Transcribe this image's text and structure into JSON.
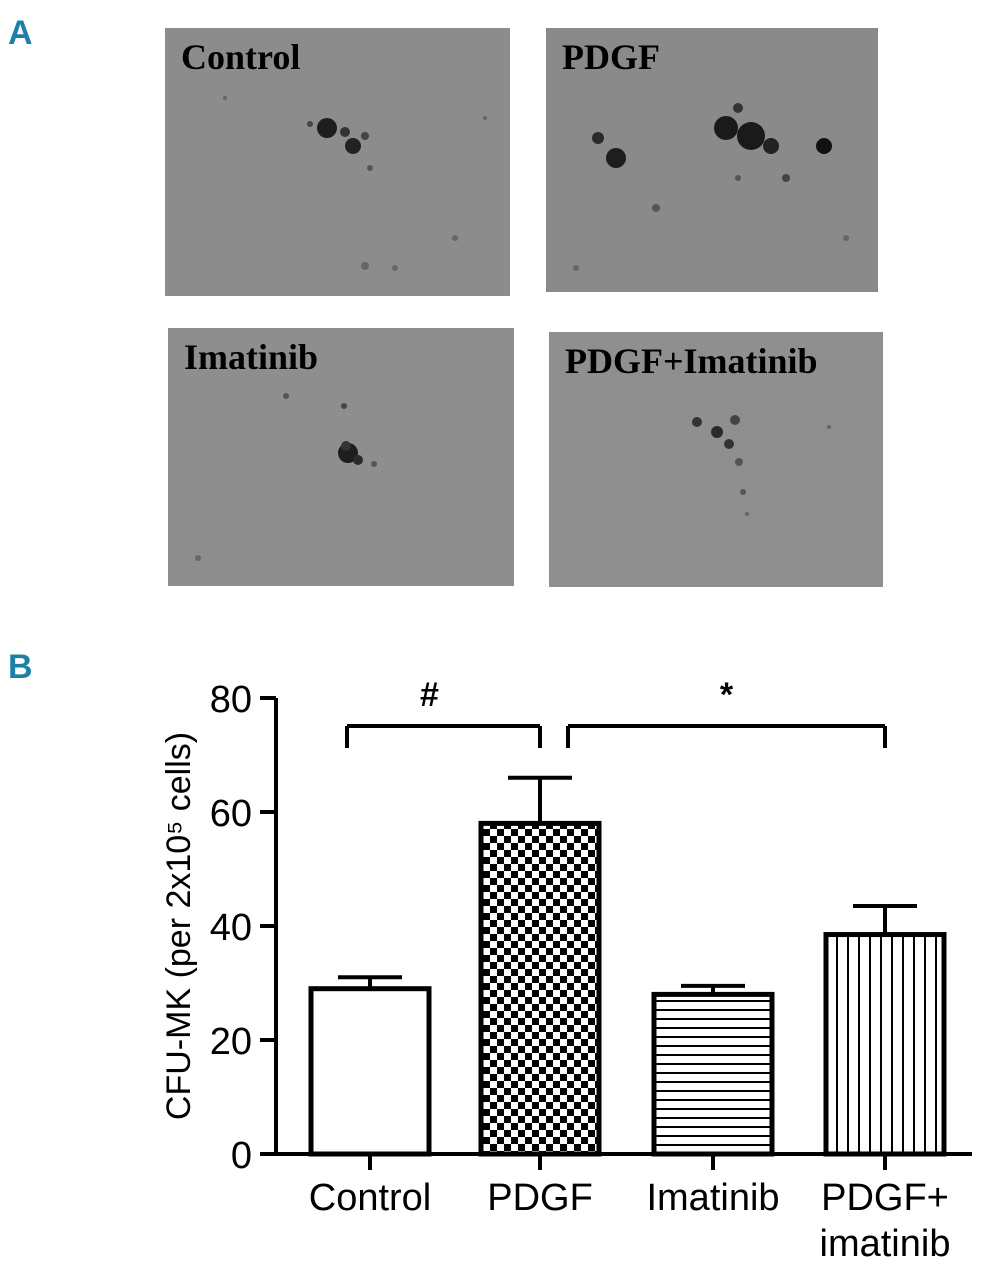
{
  "panels": {
    "a": "A",
    "b": "B"
  },
  "micrographs": [
    {
      "label": "Control"
    },
    {
      "label": "PDGF"
    },
    {
      "label": "Imatinib"
    },
    {
      "label": "PDGF+Imatinib"
    }
  ],
  "chart_data": {
    "type": "bar",
    "categories": [
      "Control",
      "PDGF",
      "Imatinib",
      "PDGF+\nimatinib"
    ],
    "values": [
      29,
      58,
      28,
      38.5
    ],
    "errors": [
      2,
      8,
      1.5,
      5
    ],
    "patterns": [
      "none",
      "checkerboard",
      "horizontal-lines",
      "vertical-lines"
    ],
    "ylabel": "CFU-MK (per 2x10⁵ cells)",
    "ylim": [
      0,
      80
    ],
    "yticks": [
      0,
      20,
      40,
      60,
      80
    ],
    "significance": [
      {
        "from": "Control",
        "to": "PDGF",
        "symbol": "#"
      },
      {
        "from": "PDGF",
        "to": "PDGF+\nimatinib",
        "symbol": "*"
      }
    ],
    "grid": false
  }
}
